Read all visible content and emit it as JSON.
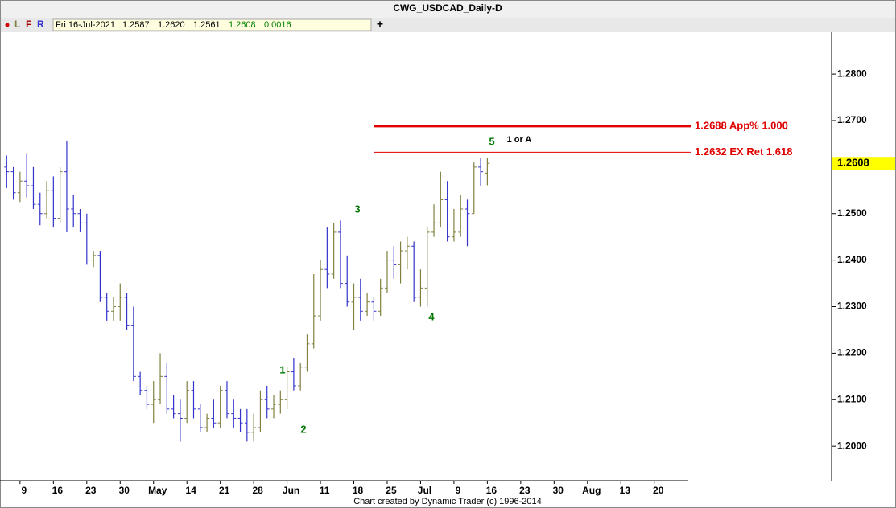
{
  "chart_data": {
    "type": "ohlc",
    "title": "CWG_USDCAD_Daily-D",
    "toolbar": {
      "letters": [
        "L",
        "F",
        "R"
      ],
      "date": "Fri 16-Jul-2021",
      "open": "1.2587",
      "high": "1.2620",
      "low": "1.2561",
      "close": "1.2608",
      "change": "0.0016"
    },
    "footer": "Chart created by Dynamic Trader  (c) 1996-2014",
    "up_color": "#808040",
    "down_color": "#3333cc",
    "xlim": [
      -1,
      102.1
    ],
    "xticks": [
      {
        "value": 2,
        "label": "9"
      },
      {
        "value": 7,
        "label": "16"
      },
      {
        "value": 12,
        "label": "23"
      },
      {
        "value": 17,
        "label": "30"
      },
      {
        "value": 22,
        "label": "May"
      },
      {
        "value": 27,
        "label": "14"
      },
      {
        "value": 32,
        "label": "21"
      },
      {
        "value": 37,
        "label": "28"
      },
      {
        "value": 42,
        "label": "Jun"
      },
      {
        "value": 47,
        "label": "11"
      },
      {
        "value": 52,
        "label": "18"
      },
      {
        "value": 57,
        "label": "25"
      },
      {
        "value": 62,
        "label": "Jul"
      },
      {
        "value": 67,
        "label": "9"
      },
      {
        "value": 72,
        "label": "16"
      },
      {
        "value": 77,
        "label": "23"
      },
      {
        "value": 82,
        "label": "30"
      },
      {
        "value": 87,
        "label": "Aug"
      },
      {
        "value": 92,
        "label": "13"
      },
      {
        "value": 97,
        "label": "20"
      }
    ],
    "ylim": [
      1.1926,
      1.289
    ],
    "yticks": [
      {
        "value": 1.2,
        "label": "1.2000"
      },
      {
        "value": 1.21,
        "label": "1.2100"
      },
      {
        "value": 1.22,
        "label": "1.2200"
      },
      {
        "value": 1.23,
        "label": "1.2300"
      },
      {
        "value": 1.24,
        "label": "1.2400"
      },
      {
        "value": 1.25,
        "label": "1.2500"
      },
      {
        "value": 1.26,
        "label": "1.2600"
      },
      {
        "value": 1.27,
        "label": "1.2700"
      },
      {
        "value": 1.28,
        "label": "1.2800"
      }
    ],
    "last_price": {
      "value": 1.2608,
      "label": "1.2608"
    },
    "levels": [
      {
        "value": 1.2688,
        "label": "1.2688 App% 1.000",
        "start": 55,
        "width": 3,
        "color": "#e00000"
      },
      {
        "value": 1.2632,
        "label": "1.2632 EX Ret 1.618",
        "start": 55,
        "width": 1,
        "color": "#e00000"
      }
    ],
    "annotations": [
      "1",
      "2",
      "3",
      "4",
      "5",
      "1 or A"
    ],
    "open": [
      1.26,
      1.259,
      1.2545,
      1.257,
      1.256,
      1.252,
      1.25,
      1.255,
      1.249,
      1.259,
      1.251,
      1.25,
      1.248,
      1.24,
      1.241,
      1.232,
      1.229,
      1.23,
      1.232,
      1.226,
      1.215,
      1.212,
      1.209,
      1.21,
      1.215,
      1.208,
      1.207,
      1.206,
      1.212,
      1.208,
      1.204,
      1.206,
      1.205,
      1.212,
      1.207,
      1.206,
      1.205,
      1.203,
      1.204,
      1.21,
      1.208,
      1.209,
      1.21,
      1.216,
      1.213,
      1.217,
      1.222,
      1.228,
      1.238,
      1.237,
      1.246,
      1.235,
      1.231,
      1.232,
      1.229,
      1.231,
      1.229,
      1.234,
      1.24,
      1.239,
      1.242,
      1.243,
      1.232,
      1.234,
      1.246,
      1.248,
      1.253,
      1.245,
      1.246,
      1.251,
      1.25,
      1.26,
      1.2587
    ],
    "high": [
      1.2625,
      1.26,
      1.259,
      1.263,
      1.26,
      1.2545,
      1.257,
      1.258,
      1.26,
      1.2655,
      1.254,
      1.251,
      1.25,
      1.242,
      1.242,
      1.233,
      1.232,
      1.235,
      1.233,
      1.23,
      1.216,
      1.213,
      1.214,
      1.22,
      1.218,
      1.211,
      1.21,
      1.214,
      1.214,
      1.209,
      1.207,
      1.21,
      1.213,
      1.214,
      1.21,
      1.208,
      1.208,
      1.207,
      1.212,
      1.213,
      1.211,
      1.212,
      1.217,
      1.219,
      1.218,
      1.224,
      1.237,
      1.24,
      1.247,
      1.248,
      1.2485,
      1.241,
      1.235,
      1.236,
      1.233,
      1.232,
      1.236,
      1.242,
      1.243,
      1.244,
      1.245,
      1.244,
      1.238,
      1.247,
      1.252,
      1.259,
      1.257,
      1.251,
      1.254,
      1.253,
      1.261,
      1.262,
      1.262
    ],
    "low": [
      1.2555,
      1.253,
      1.2525,
      1.2535,
      1.251,
      1.2475,
      1.249,
      1.247,
      1.248,
      1.246,
      1.247,
      1.246,
      1.239,
      1.2385,
      1.231,
      1.227,
      1.227,
      1.227,
      1.225,
      1.214,
      1.211,
      1.208,
      1.205,
      1.209,
      1.207,
      1.206,
      1.201,
      1.205,
      1.206,
      1.203,
      1.203,
      1.204,
      1.204,
      1.206,
      1.204,
      1.203,
      1.201,
      1.201,
      1.203,
      1.206,
      1.206,
      1.207,
      1.208,
      1.212,
      1.212,
      1.216,
      1.221,
      1.227,
      1.234,
      1.236,
      1.234,
      1.23,
      1.225,
      1.227,
      1.228,
      1.227,
      1.228,
      1.233,
      1.236,
      1.235,
      1.238,
      1.231,
      1.23,
      1.23,
      1.245,
      1.247,
      1.244,
      1.244,
      1.245,
      1.243,
      1.25,
      1.256,
      1.2561
    ],
    "close": [
      1.259,
      1.2545,
      1.257,
      1.256,
      1.252,
      1.25,
      1.255,
      1.249,
      1.259,
      1.251,
      1.25,
      1.248,
      1.24,
      1.241,
      1.232,
      1.229,
      1.23,
      1.232,
      1.226,
      1.215,
      1.212,
      1.209,
      1.21,
      1.215,
      1.208,
      1.207,
      1.206,
      1.212,
      1.208,
      1.204,
      1.206,
      1.205,
      1.212,
      1.207,
      1.206,
      1.205,
      1.203,
      1.204,
      1.21,
      1.208,
      1.209,
      1.21,
      1.216,
      1.213,
      1.217,
      1.222,
      1.228,
      1.238,
      1.237,
      1.246,
      1.235,
      1.231,
      1.232,
      1.229,
      1.231,
      1.229,
      1.234,
      1.24,
      1.239,
      1.242,
      1.243,
      1.232,
      1.234,
      1.246,
      1.248,
      1.253,
      1.245,
      1.246,
      1.251,
      1.25,
      1.26,
      1.259,
      1.2608
    ]
  }
}
